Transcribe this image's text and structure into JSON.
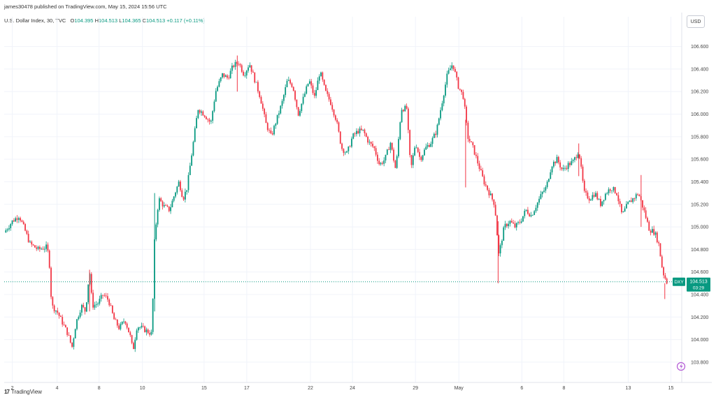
{
  "header": {
    "publisher": "james30478 published on TradingView.com, May 15, 2024 15:56 UTC",
    "symbol": "U.S. Dollar Index, 30, TVC",
    "ohlc": {
      "o_label": "O",
      "o": "104.395",
      "h_label": "H",
      "h": "104.513",
      "l_label": "L",
      "l": "104.365",
      "c_label": "C",
      "c": "104.513",
      "change": "+0.117 (+0.11%)"
    }
  },
  "currency_button": "USD",
  "footer": {
    "logo_text": "TradingView",
    "logo_mark": "17"
  },
  "colors": {
    "up": "#089981",
    "down": "#f23645",
    "grid": "#f0f3fa",
    "axis": "#e0e3eb",
    "price_line": "#089981"
  },
  "icons": {
    "footer": "tradingview-logo-icon",
    "settings": "lightning-circle-icon"
  },
  "chart_data": {
    "type": "candlestick",
    "ylim": [
      103.62,
      106.74
    ],
    "yticks": [
      103.8,
      104.0,
      104.2,
      104.4,
      104.6,
      104.8,
      105.0,
      105.2,
      105.4,
      105.6,
      105.8,
      106.0,
      106.2,
      106.4,
      106.6
    ],
    "ytick_labels": [
      "103.800",
      "104.000",
      "104.200",
      "104.400",
      "104.600",
      "104.800",
      "105.000",
      "105.200",
      "105.400",
      "105.600",
      "105.800",
      "106.000",
      "106.200",
      "106.400",
      "106.600"
    ],
    "xticks": [
      {
        "label": "2",
        "t": 0.012
      },
      {
        "label": "4",
        "t": 0.078
      },
      {
        "label": "8",
        "t": 0.14
      },
      {
        "label": "10",
        "t": 0.204
      },
      {
        "label": "15",
        "t": 0.295
      },
      {
        "label": "17",
        "t": 0.358
      },
      {
        "label": "22",
        "t": 0.452
      },
      {
        "label": "24",
        "t": 0.514
      },
      {
        "label": "29",
        "t": 0.607
      },
      {
        "label": "May",
        "t": 0.671
      },
      {
        "label": "6",
        "t": 0.764
      },
      {
        "label": "8",
        "t": 0.826
      },
      {
        "label": "13",
        "t": 0.921
      },
      {
        "label": "15",
        "t": 0.984
      }
    ],
    "path": [
      [
        0.0,
        104.95
      ],
      [
        0.012,
        105.05
      ],
      [
        0.022,
        105.1
      ],
      [
        0.03,
        104.98
      ],
      [
        0.038,
        104.85
      ],
      [
        0.05,
        104.8
      ],
      [
        0.062,
        104.82
      ],
      [
        0.066,
        104.75
      ],
      [
        0.07,
        104.3
      ],
      [
        0.078,
        104.25
      ],
      [
        0.086,
        104.15
      ],
      [
        0.094,
        104.05
      ],
      [
        0.1,
        103.93
      ],
      [
        0.106,
        104.15
      ],
      [
        0.114,
        104.3
      ],
      [
        0.12,
        104.25
      ],
      [
        0.126,
        104.62
      ],
      [
        0.13,
        104.3
      ],
      [
        0.138,
        104.32
      ],
      [
        0.146,
        104.4
      ],
      [
        0.154,
        104.35
      ],
      [
        0.162,
        104.18
      ],
      [
        0.17,
        104.1
      ],
      [
        0.178,
        104.18
      ],
      [
        0.186,
        104.03
      ],
      [
        0.19,
        103.9
      ],
      [
        0.196,
        104.12
      ],
      [
        0.204,
        104.1
      ],
      [
        0.212,
        104.07
      ],
      [
        0.218,
        104.05
      ],
      [
        0.222,
        104.9
      ],
      [
        0.228,
        105.25
      ],
      [
        0.236,
        105.18
      ],
      [
        0.244,
        105.15
      ],
      [
        0.252,
        105.3
      ],
      [
        0.258,
        105.4
      ],
      [
        0.264,
        105.25
      ],
      [
        0.27,
        105.35
      ],
      [
        0.278,
        105.7
      ],
      [
        0.286,
        106.05
      ],
      [
        0.295,
        106.0
      ],
      [
        0.305,
        105.92
      ],
      [
        0.312,
        106.2
      ],
      [
        0.322,
        106.35
      ],
      [
        0.33,
        106.32
      ],
      [
        0.338,
        106.43
      ],
      [
        0.346,
        106.46
      ],
      [
        0.354,
        106.35
      ],
      [
        0.362,
        106.45
      ],
      [
        0.37,
        106.3
      ],
      [
        0.378,
        106.15
      ],
      [
        0.386,
        105.92
      ],
      [
        0.394,
        105.8
      ],
      [
        0.402,
        105.95
      ],
      [
        0.41,
        106.1
      ],
      [
        0.418,
        106.3
      ],
      [
        0.426,
        106.25
      ],
      [
        0.434,
        106.0
      ],
      [
        0.442,
        106.15
      ],
      [
        0.45,
        106.3
      ],
      [
        0.458,
        106.15
      ],
      [
        0.466,
        106.38
      ],
      [
        0.474,
        106.2
      ],
      [
        0.482,
        106.1
      ],
      [
        0.49,
        105.95
      ],
      [
        0.498,
        105.7
      ],
      [
        0.506,
        105.65
      ],
      [
        0.514,
        105.8
      ],
      [
        0.522,
        105.85
      ],
      [
        0.53,
        105.85
      ],
      [
        0.538,
        105.75
      ],
      [
        0.546,
        105.7
      ],
      [
        0.554,
        105.55
      ],
      [
        0.562,
        105.6
      ],
      [
        0.57,
        105.75
      ],
      [
        0.578,
        105.5
      ],
      [
        0.586,
        106.05
      ],
      [
        0.594,
        106.05
      ],
      [
        0.6,
        105.5
      ],
      [
        0.607,
        105.75
      ],
      [
        0.614,
        105.6
      ],
      [
        0.622,
        105.7
      ],
      [
        0.63,
        105.75
      ],
      [
        0.638,
        105.85
      ],
      [
        0.646,
        106.1
      ],
      [
        0.654,
        106.35
      ],
      [
        0.662,
        106.45
      ],
      [
        0.67,
        106.25
      ],
      [
        0.678,
        106.15
      ],
      [
        0.684,
        105.8
      ],
      [
        0.692,
        105.7
      ],
      [
        0.7,
        105.55
      ],
      [
        0.708,
        105.4
      ],
      [
        0.716,
        105.3
      ],
      [
        0.724,
        105.2
      ],
      [
        0.73,
        104.75
      ],
      [
        0.738,
        105.0
      ],
      [
        0.746,
        105.05
      ],
      [
        0.754,
        105.0
      ],
      [
        0.762,
        105.05
      ],
      [
        0.77,
        105.15
      ],
      [
        0.778,
        105.1
      ],
      [
        0.786,
        105.2
      ],
      [
        0.794,
        105.3
      ],
      [
        0.8,
        105.35
      ],
      [
        0.808,
        105.55
      ],
      [
        0.816,
        105.6
      ],
      [
        0.824,
        105.5
      ],
      [
        0.832,
        105.55
      ],
      [
        0.84,
        105.58
      ],
      [
        0.848,
        105.68
      ],
      [
        0.856,
        105.3
      ],
      [
        0.864,
        105.25
      ],
      [
        0.872,
        105.3
      ],
      [
        0.88,
        105.2
      ],
      [
        0.888,
        105.3
      ],
      [
        0.896,
        105.35
      ],
      [
        0.904,
        105.3
      ],
      [
        0.912,
        105.1
      ],
      [
        0.92,
        105.2
      ],
      [
        0.928,
        105.25
      ],
      [
        0.936,
        105.3
      ],
      [
        0.944,
        105.15
      ],
      [
        0.952,
        104.98
      ],
      [
        0.96,
        104.95
      ],
      [
        0.966,
        104.85
      ],
      [
        0.972,
        104.6
      ],
      [
        0.978,
        104.51
      ]
    ],
    "spikes": [
      [
        0.126,
        104.62,
        104.25
      ],
      [
        0.222,
        104.25,
        105.3
      ],
      [
        0.344,
        106.52,
        106.2
      ],
      [
        0.681,
        105.95,
        105.35
      ],
      [
        0.729,
        105.05,
        104.5
      ],
      [
        0.848,
        105.74,
        105.45
      ],
      [
        0.94,
        105.46,
        105.0
      ],
      [
        0.975,
        104.5,
        104.36
      ]
    ],
    "last_price": {
      "value": 104.513,
      "label": "104.513",
      "symbol": "DXY",
      "countdown": "03:29"
    }
  }
}
